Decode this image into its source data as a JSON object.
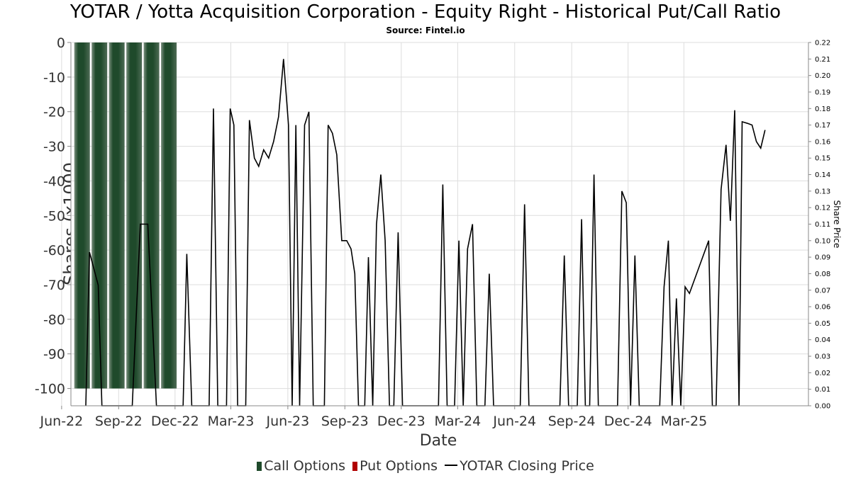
{
  "title": "YOTAR / Yotta Acquisition Corporation - Equity Right - Historical Put/Call Ratio",
  "subtitle": "Source: Fintel.io",
  "chart_data": {
    "type": "bar",
    "xlabel": "Date",
    "ylabel_left": "Shares (x1000",
    "ylabel_right": "Share Price",
    "x_ticks": [
      "Jun-22",
      "Sep-22",
      "Dec-22",
      "Mar-23",
      "Jun-23",
      "Sep-23",
      "Dec-23",
      "Mar-24",
      "Jun-24",
      "Sep-24",
      "Dec-24",
      "Mar-25"
    ],
    "y_left_ticks": [
      0,
      -10,
      -20,
      -30,
      -40,
      -50,
      -60,
      -70,
      -80,
      -90,
      -100
    ],
    "y_left_range": [
      -105,
      0
    ],
    "y_right_ticks": [
      0.0,
      0.01,
      0.02,
      0.03,
      0.04,
      0.05,
      0.06,
      0.07,
      0.08,
      0.09,
      0.1,
      0.11,
      0.12,
      0.13,
      0.14,
      0.15,
      0.16,
      0.17,
      0.18,
      0.19,
      0.2,
      0.21,
      0.22
    ],
    "y_right_range": [
      0,
      0.22
    ],
    "grid": true,
    "legend_position": "bottom",
    "colors": {
      "call": "#1f4a2b",
      "put": "#b00000",
      "price": "#000000"
    },
    "legend": [
      "Call Options",
      "Put Options",
      "YOTAR Closing Price"
    ],
    "series": [
      {
        "name": "Call Options",
        "type": "bar",
        "x": [
          "2022-07-04",
          "2022-08-01",
          "2022-08-29",
          "2022-09-26",
          "2022-10-24",
          "2022-11-21"
        ],
        "values": [
          -100,
          -100,
          -100,
          -100,
          -100,
          -100
        ]
      },
      {
        "name": "Put Options",
        "type": "bar",
        "x": [],
        "values": []
      },
      {
        "name": "YOTAR Closing Price",
        "type": "line",
        "points": [
          [
            "2022-07-10",
            0.0
          ],
          [
            "2022-07-16",
            0.093
          ],
          [
            "2022-07-30",
            0.073
          ],
          [
            "2022-08-05",
            0.0
          ],
          [
            "2022-09-23",
            0.0
          ],
          [
            "2022-10-06",
            0.11
          ],
          [
            "2022-10-18",
            0.11
          ],
          [
            "2022-11-01",
            0.0
          ],
          [
            "2022-12-14",
            0.0
          ],
          [
            "2022-12-20",
            0.092
          ],
          [
            "2022-12-28",
            0.0
          ],
          [
            "2023-01-25",
            0.0
          ],
          [
            "2023-02-01",
            0.18
          ],
          [
            "2023-02-08",
            0.0
          ],
          [
            "2023-02-22",
            0.0
          ],
          [
            "2023-02-28",
            0.18
          ],
          [
            "2023-03-06",
            0.17
          ],
          [
            "2023-03-12",
            0.0
          ],
          [
            "2023-03-25",
            0.0
          ],
          [
            "2023-03-31",
            0.173
          ],
          [
            "2023-04-08",
            0.15
          ],
          [
            "2023-04-15",
            0.145
          ],
          [
            "2023-04-23",
            0.155
          ],
          [
            "2023-05-01",
            0.15
          ],
          [
            "2023-05-09",
            0.16
          ],
          [
            "2023-05-17",
            0.175
          ],
          [
            "2023-05-25",
            0.21
          ],
          [
            "2023-06-02",
            0.17
          ],
          [
            "2023-06-08",
            0.0
          ],
          [
            "2023-06-14",
            0.17
          ],
          [
            "2023-06-20",
            0.0
          ],
          [
            "2023-06-28",
            0.17
          ],
          [
            "2023-07-05",
            0.178
          ],
          [
            "2023-07-12",
            0.0
          ],
          [
            "2023-07-30",
            0.0
          ],
          [
            "2023-08-05",
            0.17
          ],
          [
            "2023-08-12",
            0.165
          ],
          [
            "2023-08-19",
            0.152
          ],
          [
            "2023-08-27",
            0.1
          ],
          [
            "2023-09-04",
            0.1
          ],
          [
            "2023-09-11",
            0.095
          ],
          [
            "2023-09-17",
            0.08
          ],
          [
            "2023-09-23",
            0.0
          ],
          [
            "2023-10-03",
            0.0
          ],
          [
            "2023-10-09",
            0.09
          ],
          [
            "2023-10-16",
            0.0
          ],
          [
            "2023-10-22",
            0.11
          ],
          [
            "2023-10-29",
            0.14
          ],
          [
            "2023-11-05",
            0.1
          ],
          [
            "2023-11-12",
            0.0
          ],
          [
            "2023-11-19",
            0.0
          ],
          [
            "2023-11-26",
            0.105
          ],
          [
            "2023-12-03",
            0.0
          ],
          [
            "2024-01-30",
            0.0
          ],
          [
            "2024-02-06",
            0.134
          ],
          [
            "2024-02-13",
            0.0
          ],
          [
            "2024-02-25",
            0.0
          ],
          [
            "2024-03-03",
            0.1
          ],
          [
            "2024-03-10",
            0.0
          ],
          [
            "2024-03-17",
            0.095
          ],
          [
            "2024-03-25",
            0.11
          ],
          [
            "2024-04-01",
            0.0
          ],
          [
            "2024-04-14",
            0.0
          ],
          [
            "2024-04-21",
            0.08
          ],
          [
            "2024-04-28",
            0.0
          ],
          [
            "2024-06-10",
            0.0
          ],
          [
            "2024-06-17",
            0.122
          ],
          [
            "2024-06-24",
            0.0
          ],
          [
            "2024-08-13",
            0.0
          ],
          [
            "2024-08-20",
            0.091
          ],
          [
            "2024-08-27",
            0.0
          ],
          [
            "2024-09-10",
            0.0
          ],
          [
            "2024-09-17",
            0.113
          ],
          [
            "2024-09-23",
            0.0
          ],
          [
            "2024-09-30",
            0.0
          ],
          [
            "2024-10-07",
            0.14
          ],
          [
            "2024-10-14",
            0.0
          ],
          [
            "2024-11-14",
            0.0
          ],
          [
            "2024-11-21",
            0.13
          ],
          [
            "2024-11-28",
            0.123
          ],
          [
            "2024-12-05",
            0.0
          ],
          [
            "2024-12-12",
            0.091
          ],
          [
            "2024-12-19",
            0.0
          ],
          [
            "2025-01-21",
            0.0
          ],
          [
            "2025-01-28",
            0.072
          ],
          [
            "2025-02-04",
            0.1
          ],
          [
            "2025-02-10",
            0.0
          ],
          [
            "2025-02-17",
            0.065
          ],
          [
            "2025-02-24",
            0.0
          ],
          [
            "2025-03-03",
            0.072
          ],
          [
            "2025-03-10",
            0.068
          ],
          [
            "2025-04-10",
            0.1
          ],
          [
            "2025-04-16",
            0.0
          ],
          [
            "2025-04-22",
            0.0
          ],
          [
            "2025-04-30",
            0.131
          ],
          [
            "2025-05-08",
            0.158
          ],
          [
            "2025-05-15",
            0.112
          ],
          [
            "2025-05-22",
            0.179
          ],
          [
            "2025-05-29",
            0.0
          ],
          [
            "2025-06-03",
            0.172
          ],
          [
            "2025-06-12",
            0.171
          ],
          [
            "2025-06-19",
            0.17
          ],
          [
            "2025-06-26",
            0.16
          ],
          [
            "2025-07-03",
            0.156
          ],
          [
            "2025-07-10",
            0.167
          ]
        ]
      }
    ]
  }
}
